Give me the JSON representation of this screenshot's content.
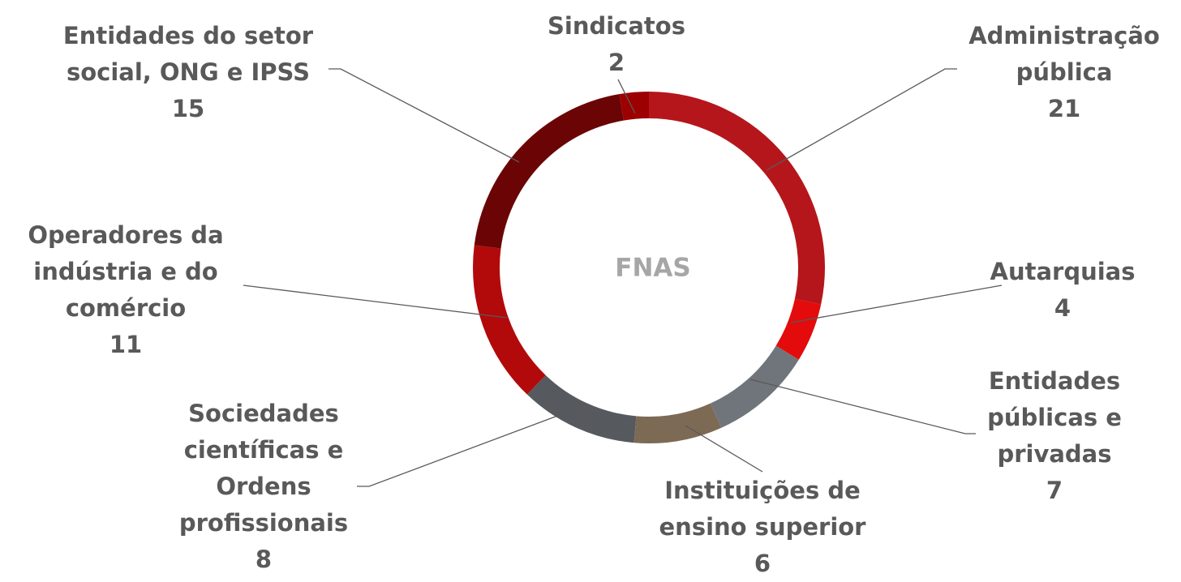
{
  "chart_data": {
    "type": "donut",
    "center_label": "FNAS",
    "categories": [
      "Administração pública",
      "Autarquias",
      "Entidades públicas e privadas",
      "Instituições de ensino superior",
      "Sociedades científicas e Ordens profissionais",
      "Operadores da indústria e do comércio",
      "Entidades do setor social, ONG e IPSS",
      "Sindicatos"
    ],
    "values": [
      21,
      4,
      7,
      6,
      8,
      11,
      15,
      2
    ],
    "colors": [
      "#b5161b",
      "#e30b0b",
      "#70757c",
      "#7d6a55",
      "#56595e",
      "#b20a0a",
      "#6b0505",
      "#9c0000"
    ]
  }
}
